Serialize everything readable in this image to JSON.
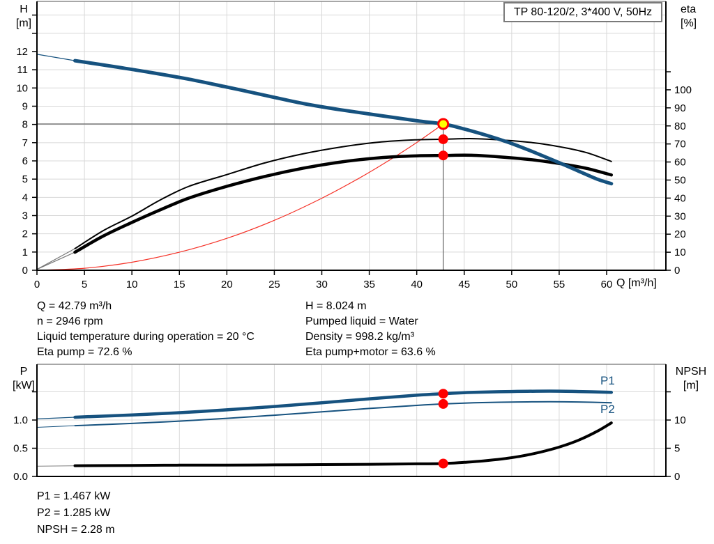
{
  "title_box": "TP 80-120/2, 3*400 V, 50Hz",
  "axis_labels": {
    "h": [
      "H",
      "[m]"
    ],
    "eta": [
      "eta",
      "[%]"
    ],
    "p": [
      "P",
      "[kW]"
    ],
    "npsh": [
      "NPSH",
      "[m]"
    ],
    "q_unit": "Q [m³/h]"
  },
  "curve_tags": {
    "p1": "P1",
    "p2": "P2"
  },
  "annotations": {
    "left": [
      "Q = 42.79 m³/h",
      "n = 2946 rpm",
      "Liquid temperature during operation = 20 °C",
      "Eta pump = 72.6 %"
    ],
    "right": [
      "H = 8.024 m",
      "Pumped liquid = Water",
      "Density = 998.2 kg/m³",
      "Eta pump+motor = 63.6 %"
    ],
    "bottom": [
      "P1 = 1.467 kW",
      "P2 = 1.285 kW",
      "NPSH = 2.28 m"
    ]
  },
  "colors": {
    "curve_blue": "#16527f",
    "curve_black": "#000000",
    "system_red": "#f53127",
    "marker_red": "#ff0000",
    "marker_yellow": "#ffff00",
    "grid": "#d8d8d8",
    "crosshair": "#606060",
    "frame": "#000000",
    "frame_top": "#8a8a8a"
  },
  "operating_point": {
    "q": 42.79,
    "h": 8.024,
    "eta_pump": 72.6,
    "eta_pump_motor": 63.6,
    "p1": 1.467,
    "p2": 1.285,
    "npsh": 2.28
  },
  "chart_data": [
    {
      "id": "hq-eta-chart",
      "type": "line",
      "title": "TP 80-120/2, 3*400 V, 50Hz",
      "x_axis": {
        "unit": "Q [m³/h]",
        "min": 0,
        "max": 66.24,
        "ticks": [
          {
            "v": 0,
            "label": "0"
          },
          {
            "v": 5,
            "label": "5"
          },
          {
            "v": 10,
            "label": "10"
          },
          {
            "v": 15,
            "label": "15"
          },
          {
            "v": 20,
            "label": "20"
          },
          {
            "v": 25,
            "label": "25"
          },
          {
            "v": 30,
            "label": "30"
          },
          {
            "v": 35,
            "label": "35"
          },
          {
            "v": 40,
            "label": "40"
          },
          {
            "v": 45,
            "label": "45"
          },
          {
            "v": 50,
            "label": "50"
          },
          {
            "v": 55,
            "label": "55"
          },
          {
            "v": 60,
            "label": "60"
          }
        ],
        "grid": [
          5,
          10,
          15,
          20,
          25,
          30,
          35,
          40,
          45,
          50,
          55,
          60,
          65
        ]
      },
      "y_left": {
        "label": "H [m]",
        "min": 0,
        "max": 14.75,
        "ticks": [
          {
            "v": 0,
            "label": "0"
          },
          {
            "v": 1,
            "label": "1"
          },
          {
            "v": 2,
            "label": "2"
          },
          {
            "v": 3,
            "label": "3"
          },
          {
            "v": 4,
            "label": "4"
          },
          {
            "v": 5,
            "label": "5"
          },
          {
            "v": 6,
            "label": "6"
          },
          {
            "v": 7,
            "label": "7"
          },
          {
            "v": 8,
            "label": "8"
          },
          {
            "v": 9,
            "label": "9"
          },
          {
            "v": 10,
            "label": "10"
          },
          {
            "v": 11,
            "label": "11"
          },
          {
            "v": 12,
            "label": "12"
          },
          {
            "v": 13,
            "label": ""
          },
          {
            "v": 14,
            "label": ""
          }
        ],
        "grid": [
          1,
          2,
          3,
          4,
          5,
          6,
          7,
          8,
          9,
          10,
          11,
          12,
          13,
          14
        ]
      },
      "y_right": {
        "label": "eta [%]",
        "min": 0,
        "max": 149,
        "ticks": [
          {
            "v": 0,
            "label": "0"
          },
          {
            "v": 10,
            "label": "10"
          },
          {
            "v": 20,
            "label": "20"
          },
          {
            "v": 30,
            "label": "30"
          },
          {
            "v": 40,
            "label": "40"
          },
          {
            "v": 50,
            "label": "50"
          },
          {
            "v": 60,
            "label": "60"
          },
          {
            "v": 70,
            "label": "70"
          },
          {
            "v": 80,
            "label": "80"
          },
          {
            "v": 90,
            "label": "90"
          },
          {
            "v": 100,
            "label": "100"
          },
          {
            "v": 110,
            "label": ""
          }
        ],
        "grid": []
      },
      "crosshair": {
        "q": 42.79,
        "v": 8.024,
        "axis": "left"
      },
      "series": [
        {
          "name": "system-curve",
          "axis": "left",
          "color": "#f53127",
          "width": 1.2,
          "points": [
            [
              0,
              0
            ],
            [
              5,
              0.11
            ],
            [
              10,
              0.44
            ],
            [
              15,
              0.99
            ],
            [
              20,
              1.75
            ],
            [
              25,
              2.74
            ],
            [
              30,
              3.95
            ],
            [
              34,
              5.07
            ],
            [
              37,
              6.0
            ],
            [
              40,
              7.01
            ],
            [
              42.79,
              8.024
            ]
          ]
        },
        {
          "name": "eta-pump-lead",
          "axis": "right",
          "color": "#777777",
          "width": 1.2,
          "points": [
            [
              0,
              0.5
            ],
            [
              4,
              12
            ]
          ]
        },
        {
          "name": "eta-pump-motor-lead",
          "axis": "right",
          "color": "#777777",
          "width": 1.2,
          "points": [
            [
              0,
              0.5
            ],
            [
              4,
              10
            ]
          ]
        },
        {
          "name": "eta-pump-curve",
          "axis": "right",
          "color": "#000000",
          "width": 2,
          "points": [
            [
              4,
              12
            ],
            [
              7,
              22
            ],
            [
              10,
              30
            ],
            [
              13,
              39
            ],
            [
              16,
              46.5
            ],
            [
              20,
              53
            ],
            [
              24,
              59.5
            ],
            [
              28,
              64.5
            ],
            [
              32,
              68.3
            ],
            [
              36,
              71
            ],
            [
              40,
              72.3
            ],
            [
              42.79,
              72.6
            ],
            [
              46,
              72.9
            ],
            [
              50,
              71.8
            ],
            [
              53,
              70.2
            ],
            [
              56,
              67.5
            ],
            [
              58,
              65
            ],
            [
              60.5,
              60.3
            ]
          ]
        },
        {
          "name": "eta-pump-motor-curve",
          "axis": "right",
          "color": "#000000",
          "width": 4.5,
          "points": [
            [
              4,
              10
            ],
            [
              7,
              19
            ],
            [
              10,
              26.5
            ],
            [
              13,
              33.5
            ],
            [
              16,
              40
            ],
            [
              20,
              46.5
            ],
            [
              24,
              52
            ],
            [
              28,
              56.5
            ],
            [
              32,
              60
            ],
            [
              36,
              62.3
            ],
            [
              40,
              63.4
            ],
            [
              42.79,
              63.6
            ],
            [
              46,
              63.7
            ],
            [
              50,
              62.3
            ],
            [
              53,
              60.7
            ],
            [
              56,
              58.3
            ],
            [
              58,
              56.3
            ],
            [
              60.5,
              52.8
            ]
          ]
        },
        {
          "name": "head-curve-lead",
          "axis": "left",
          "color": "#16527f",
          "width": 1.2,
          "points": [
            [
              0,
              11.85
            ],
            [
              4,
              11.5
            ]
          ]
        },
        {
          "name": "head-curve",
          "axis": "left",
          "color": "#16527f",
          "width": 5,
          "points": [
            [
              4,
              11.5
            ],
            [
              8,
              11.18
            ],
            [
              12,
              10.85
            ],
            [
              16,
              10.48
            ],
            [
              20,
              10.05
            ],
            [
              24,
              9.6
            ],
            [
              28,
              9.15
            ],
            [
              32,
              8.8
            ],
            [
              36,
              8.5
            ],
            [
              40,
              8.2
            ],
            [
              42.79,
              8.024
            ],
            [
              45,
              7.75
            ],
            [
              48,
              7.3
            ],
            [
              50,
              6.95
            ],
            [
              52,
              6.55
            ],
            [
              55,
              5.9
            ],
            [
              57,
              5.45
            ],
            [
              59,
              5.0
            ],
            [
              60.5,
              4.75
            ]
          ]
        }
      ],
      "markers": [
        {
          "style": "duty",
          "axis": "left",
          "q": 42.79,
          "v": 8.024
        },
        {
          "style": "dot",
          "axis": "right",
          "q": 42.79,
          "v": 72.6
        },
        {
          "style": "dot",
          "axis": "right",
          "q": 42.79,
          "v": 63.6
        }
      ]
    },
    {
      "id": "power-npsh-chart",
      "type": "line",
      "x_axis": {
        "unit": "",
        "min": 0,
        "max": 66.24,
        "ticks": [],
        "grid": [
          5,
          10,
          15,
          20,
          25,
          30,
          35,
          40,
          45,
          50,
          55,
          60,
          65
        ]
      },
      "y_left": {
        "label": "P [kW]",
        "min": 0,
        "max": 1.988,
        "ticks": [
          {
            "v": 0,
            "label": "0.0"
          },
          {
            "v": 0.5,
            "label": "0.5"
          },
          {
            "v": 1,
            "label": "1.0"
          },
          {
            "v": 1.5,
            "label": ""
          }
        ],
        "grid": [
          0.5,
          1,
          1.5
        ]
      },
      "y_right": {
        "label": "NPSH [m]",
        "min": 0,
        "max": 19.88,
        "ticks": [
          {
            "v": 0,
            "label": "0"
          },
          {
            "v": 5,
            "label": "5"
          },
          {
            "v": 10,
            "label": "10"
          },
          {
            "v": 15,
            "label": ""
          }
        ],
        "grid": []
      },
      "series": [
        {
          "name": "npsh-lead",
          "axis": "right",
          "color": "#999999",
          "width": 1.2,
          "points": [
            [
              0,
              1.8
            ],
            [
              4,
              1.9
            ]
          ]
        },
        {
          "name": "npsh-curve",
          "axis": "right",
          "color": "#000000",
          "width": 4,
          "points": [
            [
              4,
              1.9
            ],
            [
              10,
              1.95
            ],
            [
              15,
              2.0
            ],
            [
              20,
              2.0
            ],
            [
              25,
              2.05
            ],
            [
              30,
              2.1
            ],
            [
              35,
              2.15
            ],
            [
              40,
              2.23
            ],
            [
              42.79,
              2.28
            ],
            [
              45,
              2.5
            ],
            [
              47,
              2.75
            ],
            [
              49,
              3.1
            ],
            [
              51,
              3.6
            ],
            [
              53,
              4.3
            ],
            [
              55,
              5.2
            ],
            [
              57,
              6.4
            ],
            [
              59,
              8.0
            ],
            [
              60.5,
              9.5
            ]
          ]
        },
        {
          "name": "p2-lead",
          "axis": "left",
          "color": "#16527f",
          "width": 1,
          "points": [
            [
              0,
              0.87
            ],
            [
              4,
              0.9
            ]
          ]
        },
        {
          "name": "p2-curve",
          "axis": "left",
          "color": "#16527f",
          "width": 2,
          "points": [
            [
              4,
              0.9
            ],
            [
              10,
              0.94
            ],
            [
              15,
              0.98
            ],
            [
              20,
              1.03
            ],
            [
              25,
              1.085
            ],
            [
              30,
              1.145
            ],
            [
              35,
              1.205
            ],
            [
              40,
              1.26
            ],
            [
              42.79,
              1.285
            ],
            [
              46,
              1.305
            ],
            [
              50,
              1.318
            ],
            [
              54,
              1.325
            ],
            [
              57,
              1.32
            ],
            [
              60.5,
              1.305
            ]
          ]
        },
        {
          "name": "p1-lead",
          "axis": "left",
          "color": "#16527f",
          "width": 1.2,
          "points": [
            [
              0,
              1.02
            ],
            [
              4,
              1.05
            ]
          ]
        },
        {
          "name": "p1-curve",
          "axis": "left",
          "color": "#16527f",
          "width": 4.5,
          "points": [
            [
              4,
              1.05
            ],
            [
              10,
              1.09
            ],
            [
              15,
              1.13
            ],
            [
              20,
              1.18
            ],
            [
              25,
              1.24
            ],
            [
              30,
              1.305
            ],
            [
              35,
              1.375
            ],
            [
              40,
              1.44
            ],
            [
              42.79,
              1.467
            ],
            [
              46,
              1.49
            ],
            [
              50,
              1.505
            ],
            [
              54,
              1.512
            ],
            [
              57,
              1.505
            ],
            [
              60.5,
              1.49
            ]
          ]
        }
      ],
      "markers": [
        {
          "style": "dot",
          "axis": "left",
          "q": 42.79,
          "v": 1.467
        },
        {
          "style": "dot",
          "axis": "left",
          "q": 42.79,
          "v": 1.285
        },
        {
          "style": "dot",
          "axis": "right",
          "q": 42.79,
          "v": 2.28
        }
      ]
    }
  ]
}
